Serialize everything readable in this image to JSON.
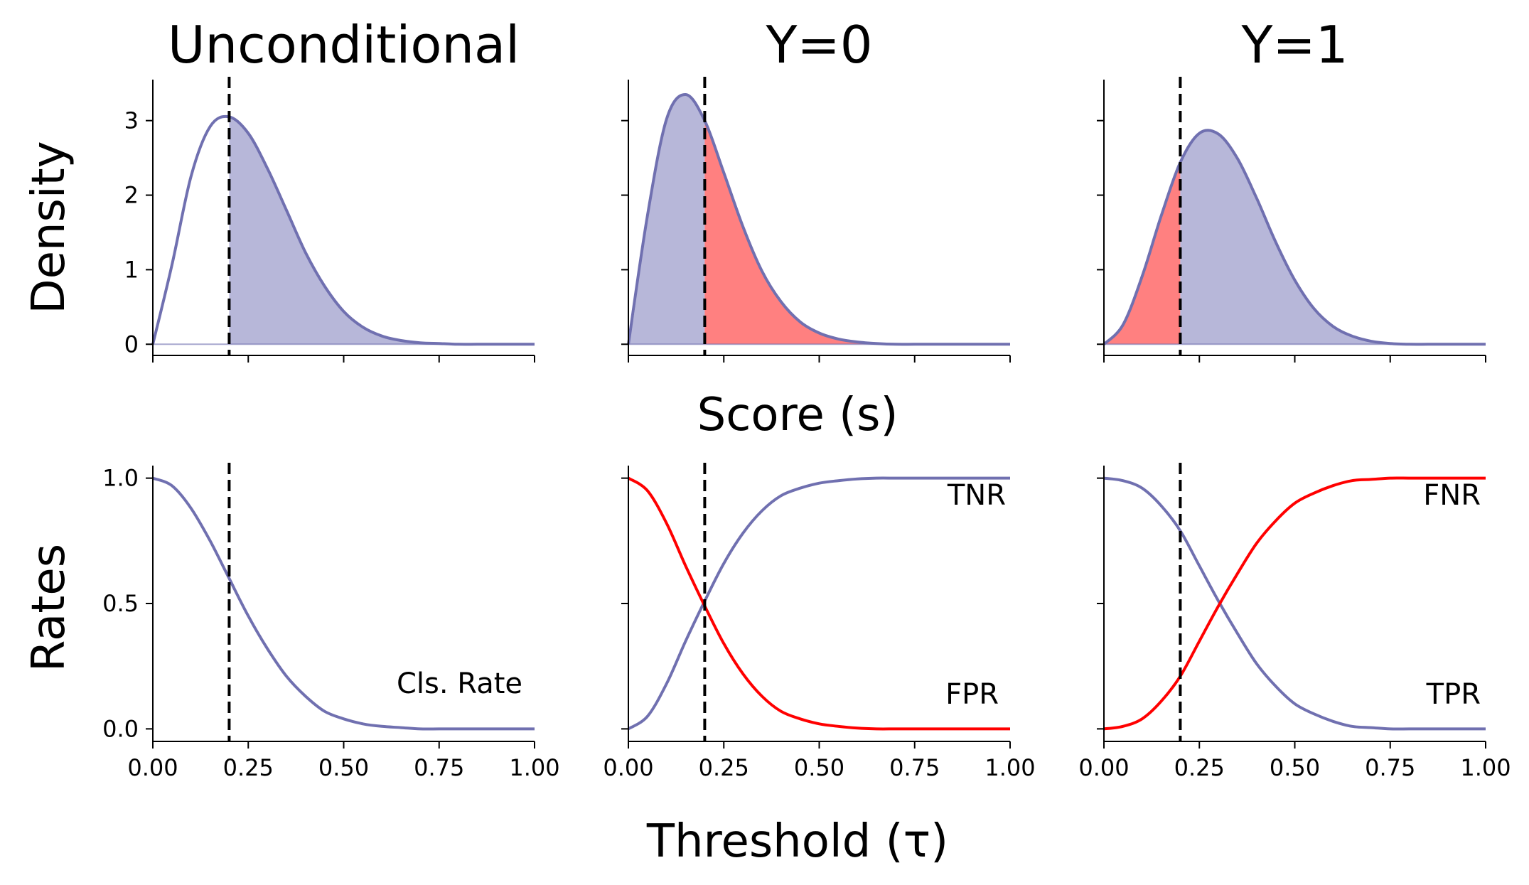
{
  "colors": {
    "purple": "#7070b0",
    "purple_fill": "#b7b7d9",
    "red": "#ff0000",
    "red_fill": "#ff8080"
  },
  "labels": {
    "score_xlabel": "Score (s)",
    "threshold_xlabel": "Threshold (τ)",
    "density_ylabel": "Density",
    "rates_ylabel": "Rates"
  },
  "threshold": 0.2,
  "chart_data": [
    {
      "type": "area",
      "panel": "density-unconditional",
      "title": "Unconditional",
      "xlabel": "",
      "ylabel": "Density",
      "xlim": [
        0,
        1
      ],
      "ylim": [
        -0.15,
        3.55
      ],
      "yticks": [
        0,
        1,
        2,
        3
      ],
      "ytick_labels": [
        "0",
        "1",
        "2",
        "3"
      ],
      "xticks": [
        0,
        0.25,
        0.5,
        0.75,
        1.0
      ],
      "threshold": 0.2,
      "x": [
        0,
        0.05,
        0.1,
        0.15,
        0.2,
        0.25,
        0.3,
        0.35,
        0.4,
        0.45,
        0.5,
        0.55,
        0.6,
        0.65,
        0.7,
        0.75,
        0.8,
        0.85,
        0.9,
        0.95,
        1.0
      ],
      "series": [
        {
          "values": [
            0,
            1.06,
            2.25,
            2.92,
            3.05,
            2.83,
            2.36,
            1.8,
            1.23,
            0.78,
            0.44,
            0.23,
            0.11,
            0.05,
            0.02,
            0.01,
            0,
            0,
            0,
            0,
            0
          ]
        }
      ],
      "shading": {
        "below_threshold": "none",
        "above_threshold": "purple"
      }
    },
    {
      "type": "area",
      "panel": "density-y0",
      "title": "Y=0",
      "xlim": [
        0,
        1
      ],
      "ylim": [
        -0.15,
        3.55
      ],
      "yticks": [
        0,
        1,
        2,
        3
      ],
      "xticks": [
        0,
        0.25,
        0.5,
        0.75,
        1.0
      ],
      "threshold": 0.2,
      "x": [
        0,
        0.05,
        0.1,
        0.15,
        0.2,
        0.25,
        0.3,
        0.35,
        0.4,
        0.45,
        0.5,
        0.55,
        0.6,
        0.65,
        0.7,
        0.75,
        0.8,
        0.85,
        0.9,
        0.95,
        1.0
      ],
      "series": [
        {
          "values": [
            0,
            1.73,
            3.02,
            3.35,
            3.0,
            2.3,
            1.58,
            0.98,
            0.57,
            0.3,
            0.15,
            0.07,
            0.03,
            0.01,
            0,
            0,
            0,
            0,
            0,
            0,
            0
          ]
        }
      ],
      "shading": {
        "below_threshold": "purple",
        "above_threshold": "red"
      }
    },
    {
      "type": "area",
      "panel": "density-y1",
      "title": "Y=1",
      "xlim": [
        0,
        1
      ],
      "ylim": [
        -0.15,
        3.55
      ],
      "yticks": [
        0,
        1,
        2,
        3
      ],
      "xticks": [
        0,
        0.25,
        0.5,
        0.75,
        1.0
      ],
      "threshold": 0.2,
      "x": [
        0,
        0.05,
        0.1,
        0.15,
        0.2,
        0.25,
        0.3,
        0.35,
        0.4,
        0.45,
        0.5,
        0.55,
        0.6,
        0.65,
        0.7,
        0.75,
        0.8,
        0.85,
        0.9,
        0.95,
        1.0
      ],
      "series": [
        {
          "values": [
            0,
            0.26,
            0.91,
            1.72,
            2.44,
            2.83,
            2.82,
            2.49,
            1.96,
            1.37,
            0.86,
            0.48,
            0.24,
            0.11,
            0.04,
            0.01,
            0,
            0,
            0,
            0,
            0
          ]
        }
      ],
      "shading": {
        "below_threshold": "red",
        "above_threshold": "purple"
      }
    },
    {
      "type": "line",
      "panel": "rates-unconditional",
      "xlabel": "",
      "ylabel": "Rates",
      "xlim": [
        0,
        1
      ],
      "ylim": [
        -0.05,
        1.05
      ],
      "yticks": [
        0,
        0.5,
        1.0
      ],
      "ytick_labels": [
        "0.0",
        "0.5",
        "1.0"
      ],
      "xticks": [
        0,
        0.25,
        0.5,
        0.75,
        1.0
      ],
      "xtick_labels": [
        "0.00",
        "0.25",
        "0.50",
        "0.75",
        "1.00"
      ],
      "threshold": 0.2,
      "x": [
        0,
        0.05,
        0.1,
        0.15,
        0.2,
        0.25,
        0.3,
        0.35,
        0.4,
        0.45,
        0.5,
        0.55,
        0.6,
        0.65,
        0.7,
        0.75,
        0.8,
        0.85,
        0.9,
        0.95,
        1.0
      ],
      "series": [
        {
          "name": "Cls. Rate",
          "color": "purple",
          "values": [
            1.0,
            0.97,
            0.88,
            0.75,
            0.6,
            0.45,
            0.32,
            0.21,
            0.13,
            0.07,
            0.04,
            0.02,
            0.01,
            0.005,
            0,
            0,
            0,
            0,
            0,
            0,
            0
          ]
        }
      ]
    },
    {
      "type": "line",
      "panel": "rates-y0",
      "xlim": [
        0,
        1
      ],
      "ylim": [
        -0.05,
        1.05
      ],
      "yticks": [
        0,
        0.5,
        1.0
      ],
      "xticks": [
        0,
        0.25,
        0.5,
        0.75,
        1.0
      ],
      "xtick_labels": [
        "0.00",
        "0.25",
        "0.50",
        "0.75",
        "1.00"
      ],
      "threshold": 0.2,
      "x": [
        0,
        0.05,
        0.1,
        0.15,
        0.2,
        0.25,
        0.3,
        0.35,
        0.4,
        0.45,
        0.5,
        0.55,
        0.6,
        0.65,
        0.7,
        0.75,
        0.8,
        0.85,
        0.9,
        0.95,
        1.0
      ],
      "series": [
        {
          "name": "TNR",
          "color": "purple",
          "values": [
            0,
            0.05,
            0.18,
            0.35,
            0.51,
            0.66,
            0.78,
            0.87,
            0.93,
            0.96,
            0.98,
            0.99,
            0.997,
            1.0,
            1.0,
            1.0,
            1.0,
            1.0,
            1.0,
            1.0,
            1.0
          ]
        },
        {
          "name": "FPR",
          "color": "red",
          "values": [
            1.0,
            0.95,
            0.82,
            0.65,
            0.49,
            0.34,
            0.22,
            0.13,
            0.07,
            0.04,
            0.02,
            0.01,
            0.003,
            0,
            0,
            0,
            0,
            0,
            0,
            0,
            0
          ]
        }
      ]
    },
    {
      "type": "line",
      "panel": "rates-y1",
      "xlim": [
        0,
        1
      ],
      "ylim": [
        -0.05,
        1.05
      ],
      "yticks": [
        0,
        0.5,
        1.0
      ],
      "xticks": [
        0,
        0.25,
        0.5,
        0.75,
        1.0
      ],
      "xtick_labels": [
        "0.00",
        "0.25",
        "0.50",
        "0.75",
        "1.00"
      ],
      "threshold": 0.2,
      "x": [
        0,
        0.05,
        0.1,
        0.15,
        0.2,
        0.25,
        0.3,
        0.35,
        0.4,
        0.45,
        0.5,
        0.55,
        0.6,
        0.65,
        0.7,
        0.75,
        0.8,
        0.85,
        0.9,
        0.95,
        1.0
      ],
      "series": [
        {
          "name": "TPR",
          "color": "purple",
          "values": [
            1.0,
            0.99,
            0.96,
            0.89,
            0.79,
            0.65,
            0.51,
            0.38,
            0.26,
            0.17,
            0.1,
            0.06,
            0.03,
            0.01,
            0.005,
            0,
            0,
            0,
            0,
            0,
            0
          ]
        },
        {
          "name": "FNR",
          "color": "red",
          "values": [
            0,
            0.01,
            0.04,
            0.11,
            0.21,
            0.35,
            0.49,
            0.62,
            0.74,
            0.83,
            0.9,
            0.94,
            0.97,
            0.99,
            0.995,
            1.0,
            1.0,
            1.0,
            1.0,
            1.0,
            1.0
          ]
        }
      ]
    }
  ]
}
